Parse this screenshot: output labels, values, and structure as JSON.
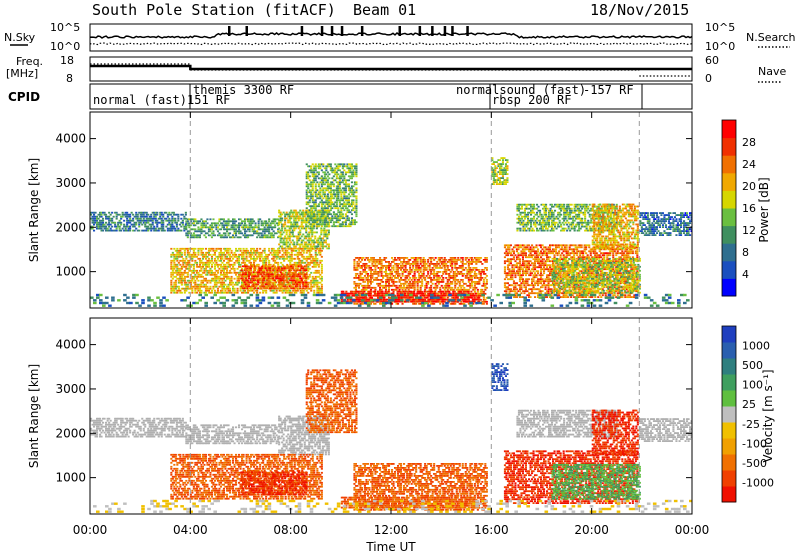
{
  "chart_data": {
    "type": "heatmap",
    "title": "South Pole Station (fitACF)",
    "beam": "Beam 01",
    "date": "18/Nov/2015",
    "xlabel": "Time UT",
    "x_ticks": [
      "00:00",
      "04:00",
      "08:00",
      "12:00",
      "16:00",
      "20:00",
      "00:00"
    ],
    "x_range_hours": [
      0,
      24
    ],
    "mode_change_hours": [
      4.0,
      16.0,
      21.9
    ],
    "header_panels": {
      "noise": {
        "left_label": "N.Sky",
        "right_label": "N.Search",
        "left_ticks": [
          "10^5",
          "10^0"
        ],
        "right_ticks": [
          "10^5",
          "10^0"
        ]
      },
      "freq": {
        "left_label_1": "Freq.",
        "left_label_2": "[MHz]",
        "right_label": "Nave",
        "left_ticks": [
          "18",
          "8"
        ],
        "right_ticks": [
          "60",
          "0"
        ]
      },
      "cpid": {
        "label": "CPID",
        "segments": [
          {
            "text": "normal (fast)",
            "start": 0.0
          },
          {
            "text": "themis 3300 RF",
            "start": 4.0,
            "row": 0
          },
          {
            "text": "151 RF",
            "start": 4.0,
            "row": 1
          },
          {
            "text": "normalsound (fast)",
            "start": 16.0,
            "row": 0
          },
          {
            "text": "-157 RF",
            "start": 16.0,
            "row": 0
          },
          {
            "text": "rbsp 200 RF",
            "start": 16.0,
            "row": 1
          }
        ]
      }
    },
    "panels": [
      {
        "name": "power",
        "ylabel": "Slant Range [km]",
        "y_ticks": [
          1000,
          2000,
          3000,
          4000
        ],
        "ylim": [
          180,
          4600
        ],
        "colorbar_label": "Power [dB]",
        "colorbar_ticks": [
          "28",
          "24",
          "20",
          "16",
          "12",
          "8",
          "4"
        ],
        "colorbar_colors": [
          "#0000ff",
          "#1a4fbf",
          "#2f6f8f",
          "#3f8f5f",
          "#6abf40",
          "#d6d600",
          "#f0a800",
          "#f07000",
          "#f03000",
          "#ff0000"
        ]
      },
      {
        "name": "velocity",
        "ylabel": "Slant Range [km]",
        "y_ticks": [
          1000,
          2000,
          3000,
          4000
        ],
        "ylim": [
          180,
          4600
        ],
        "colorbar_label": "Velocity [m s⁻¹]",
        "colorbar_ticks": [
          "1000",
          "500",
          "100",
          "25",
          "-25",
          "-100",
          "-500",
          "-1000"
        ],
        "colorbar_colors": [
          "#1f3fbf",
          "#2a5faf",
          "#2f7f7f",
          "#3f9f5f",
          "#5fbf3f",
          "#bfbfbf",
          "#f0c000",
          "#f0a000",
          "#f07000",
          "#f04000",
          "#f01000"
        ],
        "ground_color": "#b0b0b0"
      }
    ],
    "echo_regions": [
      {
        "t0": 0.0,
        "t1": 3.8,
        "r0": 1900,
        "r1": 2350,
        "power": 9,
        "vel": 10,
        "gs": true
      },
      {
        "t0": 3.8,
        "t1": 7.5,
        "r0": 1750,
        "r1": 2200,
        "power": 12,
        "vel": 10,
        "gs": true
      },
      {
        "t0": 7.5,
        "t1": 9.5,
        "r0": 1500,
        "r1": 2400,
        "power": 16,
        "vel": 10,
        "gs": true
      },
      {
        "t0": 3.2,
        "t1": 9.2,
        "r0": 500,
        "r1": 1500,
        "power": 20,
        "vel": -100
      },
      {
        "t0": 6.0,
        "t1": 8.6,
        "r0": 600,
        "r1": 1100,
        "power": 26,
        "vel": -500
      },
      {
        "t0": 8.6,
        "t1": 10.6,
        "r0": 2000,
        "r1": 3400,
        "power": 14,
        "vel": -100
      },
      {
        "t0": 10.5,
        "t1": 15.8,
        "r0": 250,
        "r1": 1300,
        "power": 24,
        "vel": -100
      },
      {
        "t0": 10.0,
        "t1": 15.5,
        "r0": 300,
        "r1": 550,
        "power": 30,
        "vel": -100
      },
      {
        "t0": 16.0,
        "t1": 16.6,
        "r0": 2950,
        "r1": 3550,
        "power": 16,
        "vel": 1000
      },
      {
        "t0": 16.5,
        "t1": 21.8,
        "r0": 400,
        "r1": 1600,
        "power": 24,
        "vel": -500
      },
      {
        "t0": 17.0,
        "t1": 21.0,
        "r0": 1900,
        "r1": 2500,
        "power": 14,
        "vel": 10,
        "gs": true
      },
      {
        "t0": 18.4,
        "t1": 21.9,
        "r0": 500,
        "r1": 1300,
        "power": 16,
        "vel": 100
      },
      {
        "t0": 20.0,
        "t1": 21.8,
        "r0": 1500,
        "r1": 2500,
        "power": 20,
        "vel": -500
      },
      {
        "t0": 21.9,
        "t1": 24.0,
        "r0": 1800,
        "r1": 2300,
        "power": 8,
        "vel": 10,
        "gs": true
      },
      {
        "t0": 0.0,
        "t1": 24.0,
        "r0": 200,
        "r1": 450,
        "power": 10,
        "vel": 25,
        "sparse": true
      }
    ]
  }
}
